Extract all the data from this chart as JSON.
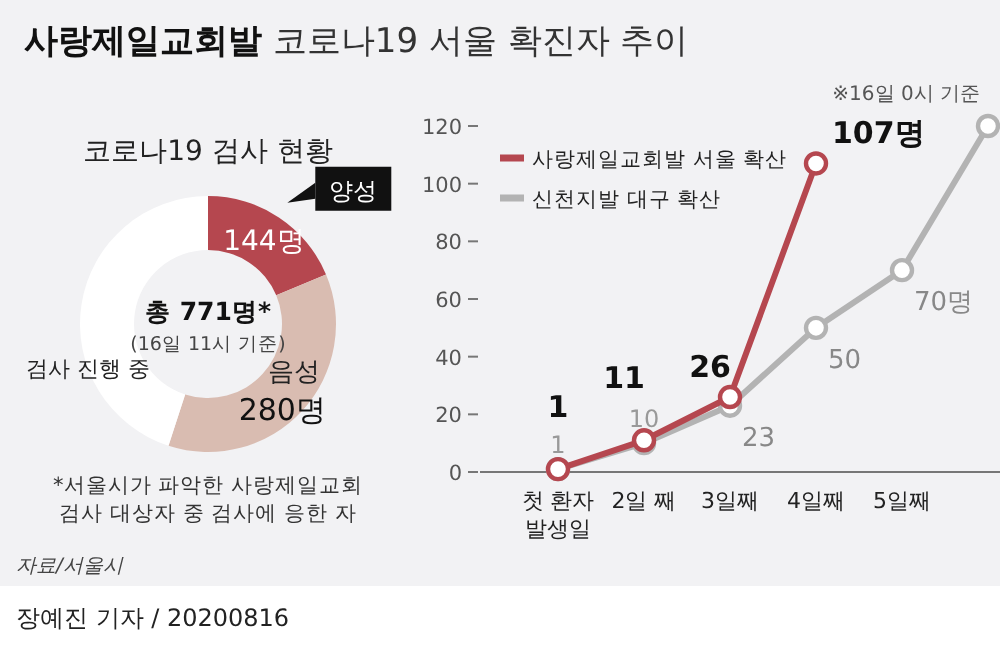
{
  "chart_data": [
    {
      "type": "donut",
      "title": "코로나19 검사 현황",
      "categories": [
        "양성",
        "음성",
        "검사 진행 중"
      ],
      "values": [
        144,
        280,
        347
      ],
      "colors": [
        "#b5474f",
        "#d9bcb1",
        "#ffffff"
      ],
      "value_labels": [
        "144명",
        "280명",
        null
      ],
      "annotations": [
        "총 771명*",
        "(16일 11시 기준)",
        "*서울시가 파악한 사랑제일교회\n검사 대상자 중 검사에 응한 자",
        "자료/서울시"
      ]
    },
    {
      "type": "line",
      "title": "사랑제일교회발 코로나19 서울 확진자 추이",
      "categories": [
        "첫 환자\n발생일",
        "2일 째",
        "3일째",
        "4일째",
        "5일째",
        null
      ],
      "series": [
        {
          "name": "사랑제일교회발 서울 확산",
          "color": "#b5474f",
          "values": [
            1,
            11,
            26,
            107,
            null,
            null
          ],
          "value_labels": [
            "1",
            "11",
            "26",
            "107명",
            null,
            null
          ]
        },
        {
          "name": "신천지발 대구 확산",
          "color": "#b3b3b3",
          "values": [
            1,
            10,
            23,
            50,
            70,
            120
          ],
          "value_labels": [
            "1",
            "10",
            "23",
            "50",
            "70명",
            null
          ]
        }
      ],
      "ylim": [
        0,
        120
      ],
      "yticks": [
        0,
        20,
        40,
        60,
        80,
        100,
        120
      ],
      "marker": "circle",
      "legend": "top left",
      "annotations": [
        "※16일 0시 기준",
        "장예진 기자 / 20200816"
      ]
    }
  ]
}
